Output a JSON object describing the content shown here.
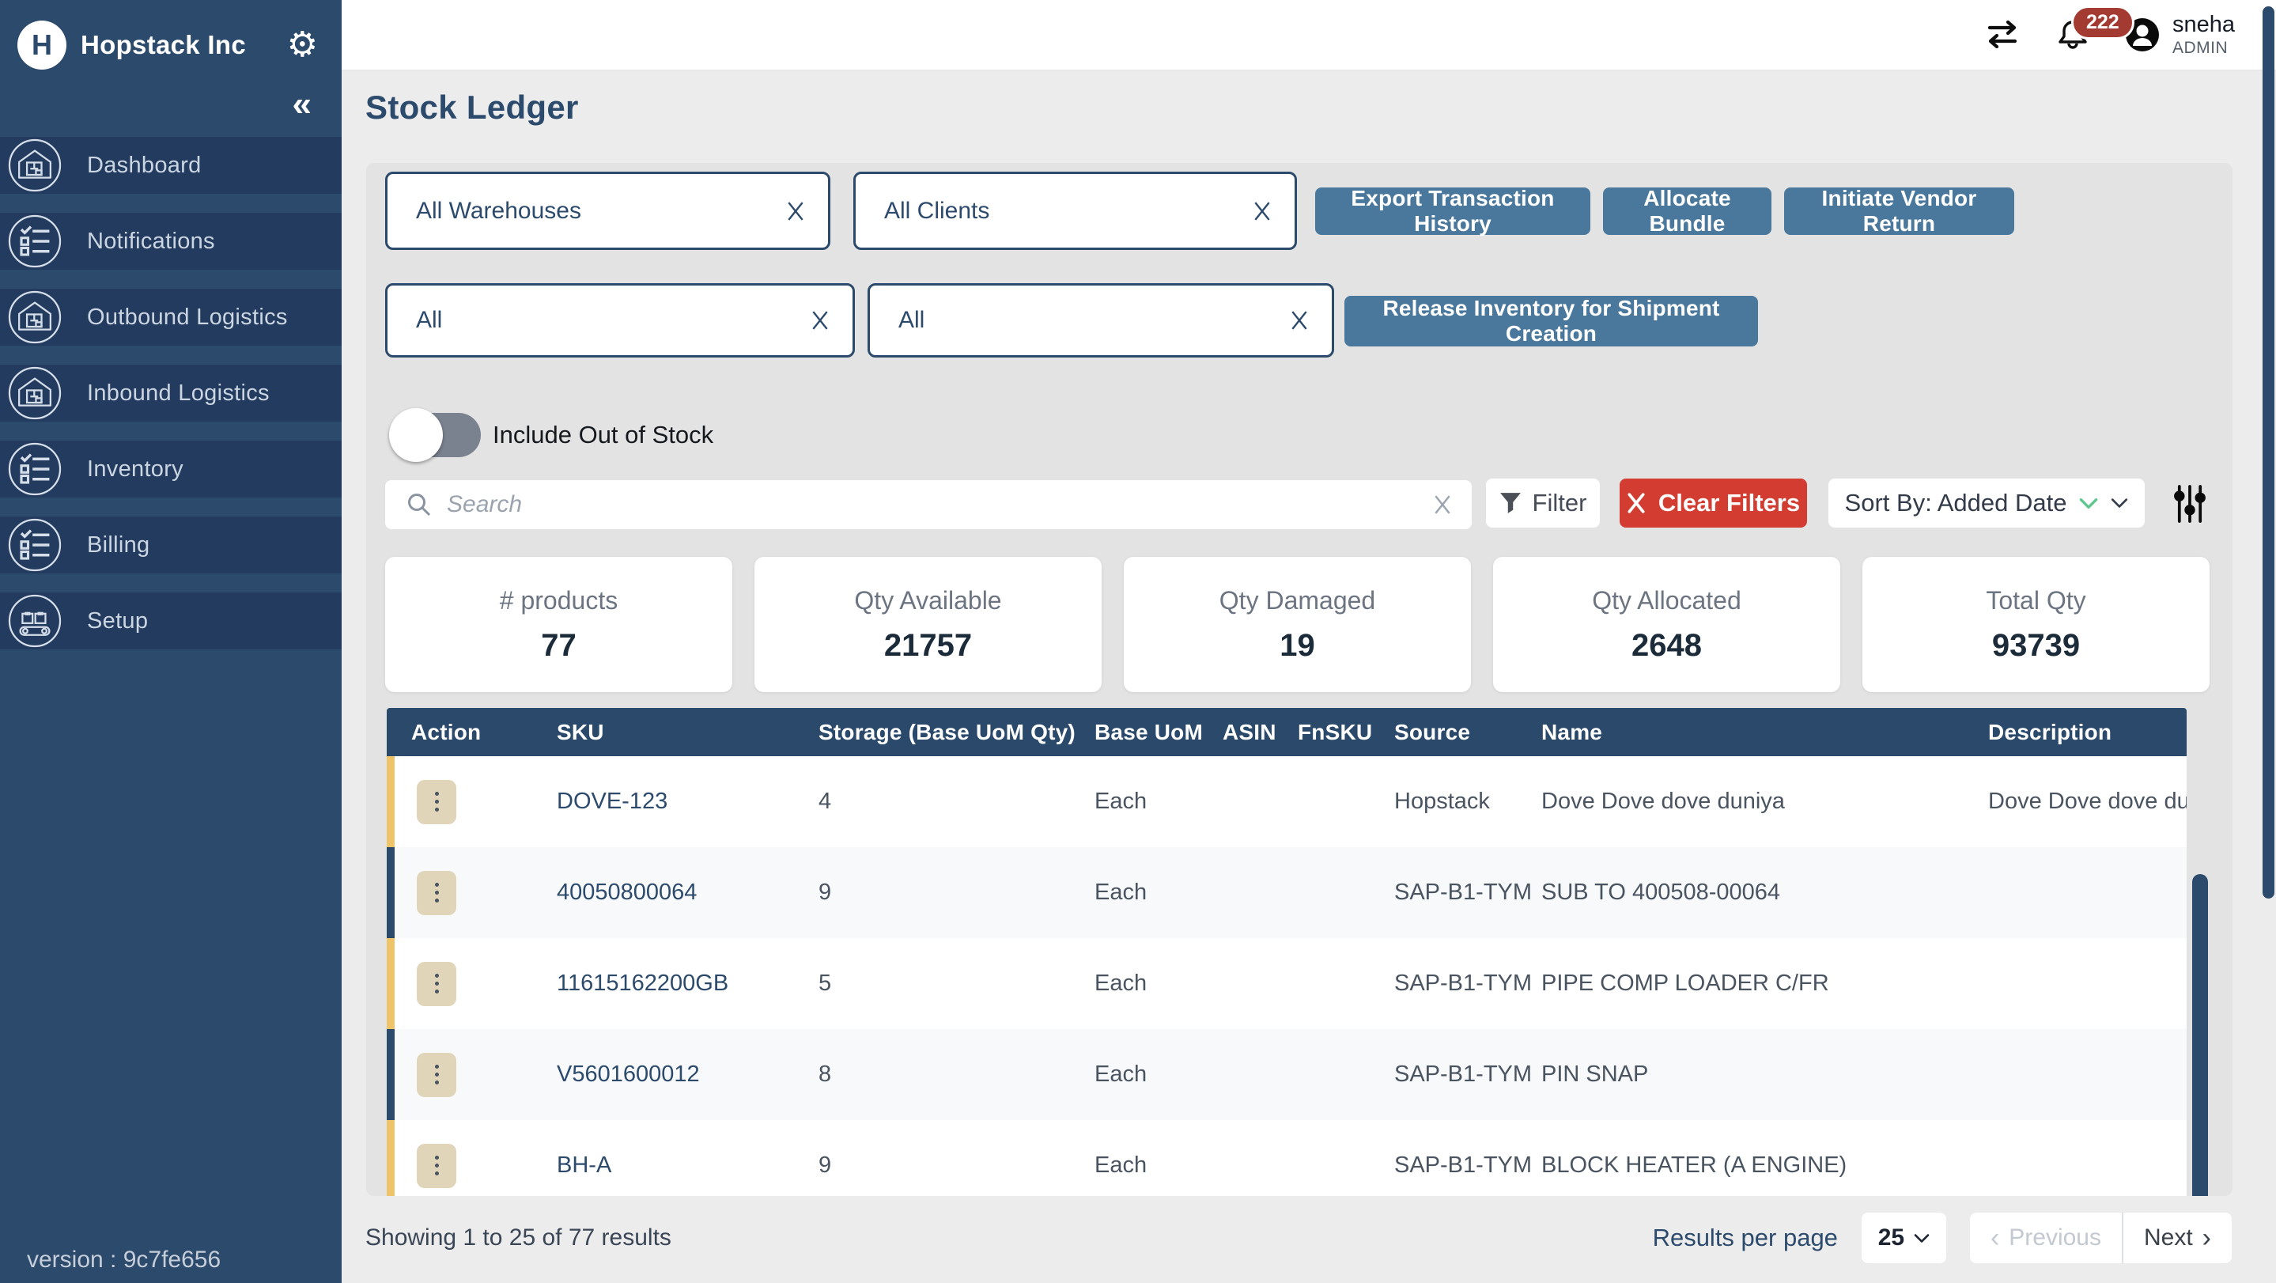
{
  "sidebar": {
    "brand": "Hopstack Inc",
    "collapse_icon": "«",
    "version": "version : 9c7fe656",
    "items": [
      {
        "label": "Dashboard",
        "icon": "warehouse-icon"
      },
      {
        "label": "Notifications",
        "icon": "checklist-icon"
      },
      {
        "label": "Outbound Logistics",
        "icon": "warehouse-icon"
      },
      {
        "label": "Inbound Logistics",
        "icon": "warehouse-icon"
      },
      {
        "label": "Inventory",
        "icon": "checklist-icon"
      },
      {
        "label": "Billing",
        "icon": "checklist-icon"
      },
      {
        "label": "Setup",
        "icon": "conveyor-icon"
      }
    ]
  },
  "topbar": {
    "notification_count": "222",
    "user_name": "sneha",
    "user_role": "ADMIN"
  },
  "page": {
    "title": "Stock Ledger"
  },
  "filters": {
    "warehouse": "All Warehouses",
    "client": "All Clients",
    "third": "All",
    "fourth": "All",
    "toggle_label": "Include Out of Stock",
    "search_placeholder": "Search",
    "filter_label": "Filter",
    "clear_label": "Clear Filters",
    "sort_label": "Sort By: Added Date"
  },
  "buttons": {
    "export": "Export Transaction History",
    "allocate": "Allocate Bundle",
    "vendor_return": "Initiate Vendor Return",
    "release": "Release Inventory for Shipment Creation"
  },
  "stats": [
    {
      "label": "# products",
      "value": "77"
    },
    {
      "label": "Qty Available",
      "value": "21757"
    },
    {
      "label": "Qty Damaged",
      "value": "19"
    },
    {
      "label": "Qty Allocated",
      "value": "2648"
    },
    {
      "label": "Total Qty",
      "value": "93739"
    }
  ],
  "table": {
    "columns": [
      "Action",
      "SKU",
      "Storage (Base UoM Qty)",
      "Base UoM",
      "ASIN",
      "FnSKU",
      "Source",
      "Name",
      "Description"
    ],
    "rows": [
      {
        "sku": "DOVE-123",
        "storage": "4",
        "base_uom": "Each",
        "asin": "",
        "fnsku": "",
        "source": "Hopstack",
        "name": "Dove Dove dove duniya",
        "description": "Dove Dove dove du",
        "accent": "yellow"
      },
      {
        "sku": "40050800064",
        "storage": "9",
        "base_uom": "Each",
        "asin": "",
        "fnsku": "",
        "source": "SAP-B1-TYM",
        "name": "SUB TO 400508-00064",
        "description": "",
        "accent": "navy"
      },
      {
        "sku": "11615162200GB",
        "storage": "5",
        "base_uom": "Each",
        "asin": "",
        "fnsku": "",
        "source": "SAP-B1-TYM",
        "name": "PIPE COMP LOADER C/FR",
        "description": "",
        "accent": "yellow"
      },
      {
        "sku": "V5601600012",
        "storage": "8",
        "base_uom": "Each",
        "asin": "",
        "fnsku": "",
        "source": "SAP-B1-TYM",
        "name": "PIN SNAP",
        "description": "",
        "accent": "navy"
      },
      {
        "sku": "BH-A",
        "storage": "9",
        "base_uom": "Each",
        "asin": "",
        "fnsku": "",
        "source": "SAP-B1-TYM",
        "name": "BLOCK HEATER (A ENGINE)",
        "description": "",
        "accent": "yellow"
      }
    ]
  },
  "footer": {
    "showing": "Showing 1 to 25 of 77 results",
    "results_per_page": "Results per page",
    "page_size": "25",
    "previous": "Previous",
    "next": "Next"
  },
  "colors": {
    "sidebar_navy": "#2C4A6C",
    "table_header_navy": "#2B4A6B",
    "button_steel": "#4A789C",
    "danger_red": "#D23C31",
    "accent_yellow": "#EFC368",
    "action_beige": "#E1D5B9"
  }
}
